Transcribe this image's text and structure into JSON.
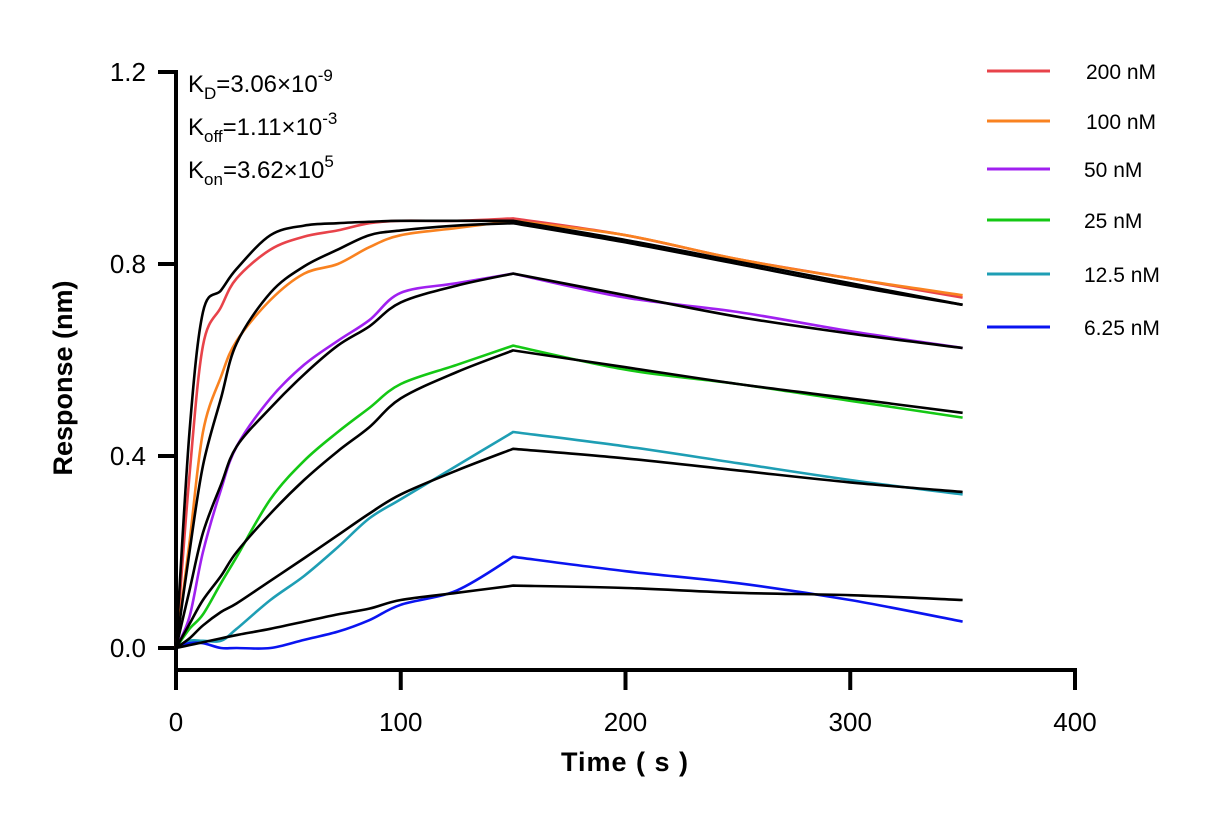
{
  "chart_data": {
    "type": "line",
    "xlabel": "Time ( s )",
    "ylabel": "Response (nm)",
    "xlim": [
      0,
      400
    ],
    "ylim": [
      0,
      1.2
    ],
    "x_ticks": [
      "0",
      "100",
      "200",
      "300",
      "400"
    ],
    "y_ticks": [
      "0.0",
      "0.4",
      "0.8",
      "1.2"
    ],
    "grid": false,
    "legend_position": "top-right",
    "annotations": {
      "kd": {
        "base": "K",
        "sub": "D",
        "value": "=3.06×10",
        "exp": "-9"
      },
      "koff": {
        "base": "K",
        "sub": "off",
        "value": "=1.11×10",
        "exp": "-3"
      },
      "kon": {
        "base": "K",
        "sub": "on",
        "value": "=3.62×10",
        "exp": "5"
      }
    },
    "x": [
      0,
      6,
      12,
      20,
      27,
      42,
      57,
      72,
      86,
      100,
      125,
      150,
      200,
      250,
      300,
      350
    ],
    "series": [
      {
        "name": "200 nM",
        "color": "#e8434a",
        "values": [
          0,
          0.36,
          0.63,
          0.71,
          0.77,
          0.83,
          0.857,
          0.87,
          0.885,
          0.89,
          0.89,
          0.895,
          0.86,
          0.81,
          0.77,
          0.73
        ],
        "fit": [
          0,
          0.45,
          0.7,
          0.745,
          0.79,
          0.86,
          0.88,
          0.885,
          0.888,
          0.89,
          0.89,
          0.89,
          0.85,
          0.805,
          0.76,
          0.715
        ]
      },
      {
        "name": "100 nM",
        "color": "#f98220",
        "values": [
          0,
          0.22,
          0.45,
          0.565,
          0.64,
          0.725,
          0.78,
          0.8,
          0.835,
          0.86,
          0.875,
          0.89,
          0.86,
          0.81,
          0.77,
          0.735
        ],
        "fit": [
          0,
          0.2,
          0.38,
          0.52,
          0.635,
          0.74,
          0.795,
          0.83,
          0.86,
          0.87,
          0.88,
          0.885,
          0.845,
          0.8,
          0.755,
          0.715
        ]
      },
      {
        "name": "50 nM",
        "color": "#a020f0",
        "values": [
          0,
          0.065,
          0.2,
          0.33,
          0.42,
          0.52,
          0.59,
          0.64,
          0.683,
          0.74,
          0.76,
          0.78,
          0.73,
          0.7,
          0.66,
          0.625
        ],
        "fit": [
          0,
          0.12,
          0.24,
          0.34,
          0.42,
          0.5,
          0.57,
          0.63,
          0.67,
          0.72,
          0.755,
          0.78,
          0.735,
          0.69,
          0.655,
          0.625
        ]
      },
      {
        "name": "25 nM",
        "color": "#14c814",
        "values": [
          0,
          0.04,
          0.07,
          0.135,
          0.19,
          0.31,
          0.39,
          0.45,
          0.5,
          0.55,
          0.59,
          0.63,
          0.58,
          0.55,
          0.515,
          0.48
        ],
        "fit": [
          0,
          0.05,
          0.1,
          0.15,
          0.2,
          0.28,
          0.35,
          0.41,
          0.46,
          0.52,
          0.575,
          0.62,
          0.585,
          0.55,
          0.52,
          0.49
        ]
      },
      {
        "name": "12.5 nM",
        "color": "#1e9eb4",
        "values": [
          0,
          0.015,
          0.015,
          0.015,
          0.04,
          0.1,
          0.15,
          0.21,
          0.27,
          0.31,
          0.38,
          0.45,
          0.42,
          0.385,
          0.35,
          0.32
        ],
        "fit": [
          0,
          0.02,
          0.047,
          0.075,
          0.093,
          0.14,
          0.187,
          0.235,
          0.28,
          0.32,
          0.37,
          0.415,
          0.395,
          0.37,
          0.345,
          0.325
        ]
      },
      {
        "name": "6.25 nM",
        "color": "#0a14f0",
        "values": [
          0,
          0.01,
          0.01,
          0.0,
          0.0,
          0.0,
          0.017,
          0.034,
          0.058,
          0.09,
          0.12,
          0.19,
          0.16,
          0.135,
          0.1,
          0.055
        ],
        "fit": [
          0,
          0.006,
          0.012,
          0.02,
          0.027,
          0.04,
          0.055,
          0.07,
          0.082,
          0.1,
          0.115,
          0.13,
          0.125,
          0.115,
          0.11,
          0.1
        ]
      }
    ]
  }
}
